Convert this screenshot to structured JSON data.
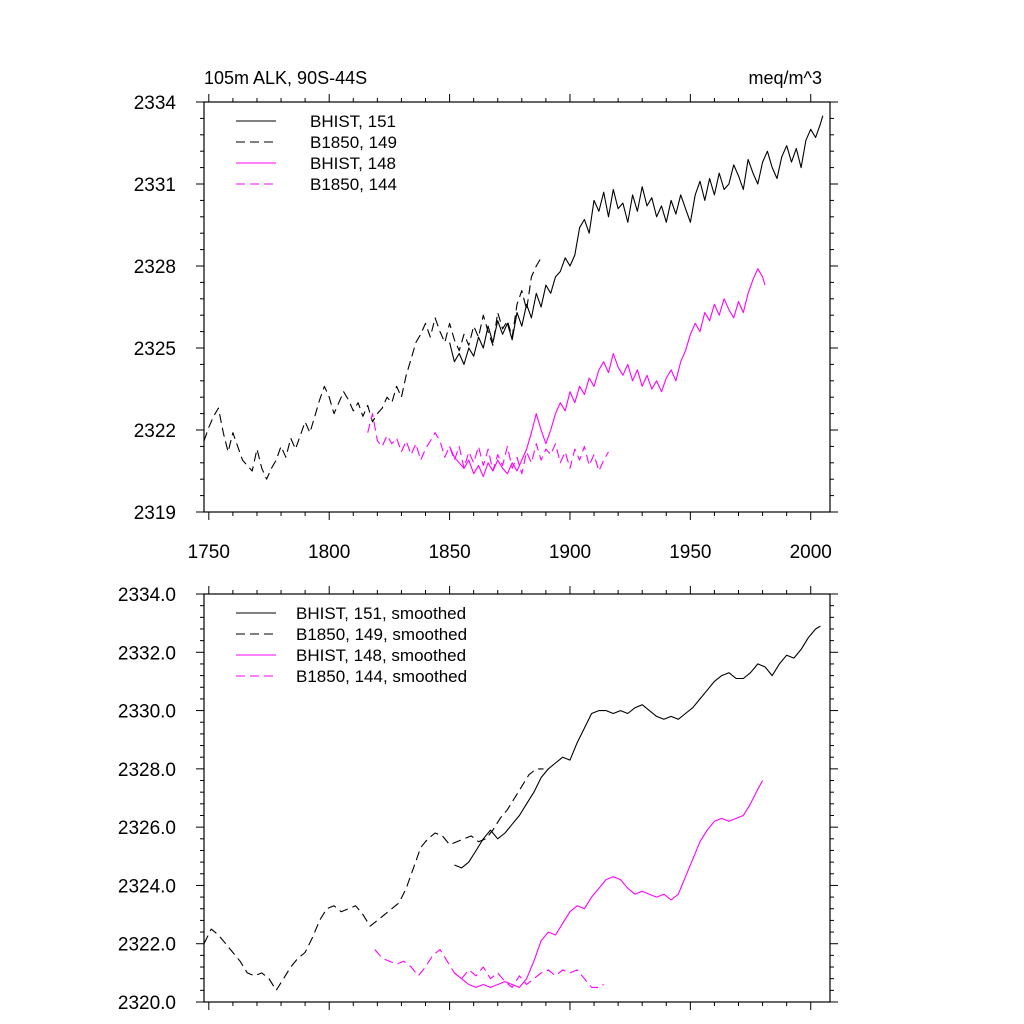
{
  "chart_data": [
    {
      "type": "line",
      "title_left": "105m ALK, 90S-44S",
      "title_right": "meq/m^3",
      "xlim": [
        1748,
        2008
      ],
      "ylim": [
        2319,
        2334
      ],
      "xticks": [
        1750,
        1800,
        1850,
        1900,
        1950,
        2000
      ],
      "xtick_labels": [
        "1750",
        "1800",
        "1850",
        "1900",
        "1950",
        "2000"
      ],
      "yticks": [
        2319,
        2322,
        2325,
        2328,
        2331,
        2334
      ],
      "ytick_labels": [
        "2319",
        "2322",
        "2325",
        "2328",
        "2331",
        "2334"
      ],
      "grid": false,
      "legend_position": "top-left",
      "series": [
        {
          "name": "BHIST, 151",
          "color": "#000000",
          "dash": "solid",
          "x": [
            1850,
            1852,
            1854,
            1856,
            1858,
            1860,
            1862,
            1864,
            1866,
            1868,
            1870,
            1872,
            1874,
            1876,
            1878,
            1880,
            1882,
            1884,
            1886,
            1888,
            1890,
            1892,
            1894,
            1896,
            1898,
            1900,
            1902,
            1904,
            1906,
            1908,
            1910,
            1912,
            1914,
            1916,
            1918,
            1920,
            1922,
            1924,
            1926,
            1928,
            1930,
            1932,
            1934,
            1936,
            1938,
            1940,
            1942,
            1944,
            1946,
            1948,
            1950,
            1952,
            1954,
            1956,
            1958,
            1960,
            1962,
            1964,
            1966,
            1968,
            1970,
            1972,
            1974,
            1976,
            1978,
            1980,
            1982,
            1984,
            1986,
            1988,
            1990,
            1992,
            1994,
            1996,
            1998,
            2000,
            2002,
            2004,
            2005
          ],
          "y": [
            2325.2,
            2324.5,
            2324.8,
            2324.4,
            2325.0,
            2324.7,
            2325.4,
            2325.0,
            2325.8,
            2325.2,
            2326.0,
            2325.5,
            2325.9,
            2325.3,
            2326.3,
            2325.8,
            2326.6,
            2326.1,
            2327.0,
            2326.5,
            2327.3,
            2327.0,
            2327.6,
            2327.8,
            2328.3,
            2328.0,
            2328.4,
            2329.4,
            2329.7,
            2329.2,
            2330.4,
            2330.0,
            2330.7,
            2329.8,
            2330.8,
            2330.1,
            2330.3,
            2329.6,
            2330.6,
            2330.0,
            2330.9,
            2330.2,
            2330.5,
            2329.8,
            2330.2,
            2329.6,
            2330.4,
            2329.9,
            2330.6,
            2330.1,
            2329.6,
            2330.6,
            2331.1,
            2330.4,
            2331.2,
            2330.6,
            2331.4,
            2330.8,
            2331.0,
            2331.7,
            2331.3,
            2330.8,
            2331.9,
            2331.4,
            2331.0,
            2331.8,
            2332.2,
            2331.6,
            2331.2,
            2332.0,
            2332.4,
            2331.8,
            2332.3,
            2331.6,
            2332.6,
            2333.0,
            2332.7,
            2333.2,
            2333.5
          ]
        },
        {
          "name": "B1850, 149",
          "color": "#000000",
          "dash": "dashed",
          "x": [
            1748,
            1750,
            1752,
            1754,
            1756,
            1758,
            1760,
            1762,
            1764,
            1766,
            1768,
            1770,
            1772,
            1774,
            1776,
            1778,
            1780,
            1782,
            1784,
            1786,
            1788,
            1790,
            1792,
            1794,
            1796,
            1798,
            1800,
            1802,
            1804,
            1806,
            1808,
            1810,
            1812,
            1814,
            1816,
            1818,
            1820,
            1822,
            1824,
            1826,
            1828,
            1830,
            1832,
            1834,
            1836,
            1838,
            1840,
            1842,
            1844,
            1846,
            1848,
            1850,
            1852,
            1854,
            1856,
            1858,
            1860,
            1862,
            1864,
            1866,
            1868,
            1870,
            1872,
            1874,
            1876,
            1878,
            1880,
            1882,
            1884,
            1886,
            1888
          ],
          "y": [
            2321.6,
            2322.1,
            2322.5,
            2322.8,
            2321.9,
            2321.2,
            2321.9,
            2321.4,
            2320.9,
            2320.7,
            2320.5,
            2321.3,
            2320.6,
            2320.2,
            2320.6,
            2320.9,
            2321.4,
            2321.0,
            2321.7,
            2321.3,
            2321.8,
            2322.3,
            2321.9,
            2322.5,
            2323.1,
            2323.6,
            2323.2,
            2322.6,
            2323.0,
            2323.4,
            2323.1,
            2322.7,
            2323.0,
            2322.5,
            2322.9,
            2322.3,
            2322.6,
            2322.8,
            2323.2,
            2323.0,
            2323.6,
            2323.2,
            2324.0,
            2324.6,
            2325.2,
            2325.5,
            2325.9,
            2325.4,
            2326.1,
            2325.6,
            2325.2,
            2325.9,
            2325.3,
            2324.9,
            2325.5,
            2325.1,
            2325.8,
            2325.4,
            2326.2,
            2325.6,
            2325.1,
            2326.3,
            2325.7,
            2326.0,
            2325.4,
            2326.6,
            2327.1,
            2326.4,
            2327.6,
            2328.0,
            2328.3
          ]
        },
        {
          "name": "BHIST, 148",
          "color": "#ff00ff",
          "dash": "solid",
          "x": [
            1850,
            1852,
            1854,
            1856,
            1858,
            1860,
            1862,
            1864,
            1866,
            1868,
            1870,
            1872,
            1874,
            1876,
            1878,
            1880,
            1882,
            1884,
            1886,
            1888,
            1890,
            1892,
            1894,
            1896,
            1898,
            1900,
            1902,
            1904,
            1906,
            1908,
            1910,
            1912,
            1914,
            1916,
            1918,
            1920,
            1922,
            1924,
            1926,
            1928,
            1930,
            1932,
            1934,
            1936,
            1938,
            1940,
            1942,
            1944,
            1946,
            1948,
            1950,
            1952,
            1954,
            1956,
            1958,
            1960,
            1962,
            1964,
            1966,
            1968,
            1970,
            1972,
            1974,
            1976,
            1978,
            1980,
            1981
          ],
          "y": [
            2321.4,
            2321.0,
            2320.8,
            2320.6,
            2320.9,
            2320.4,
            2320.7,
            2320.3,
            2320.8,
            2320.5,
            2320.9,
            2320.6,
            2320.4,
            2320.8,
            2320.5,
            2320.9,
            2321.3,
            2321.9,
            2322.6,
            2322.0,
            2321.5,
            2322.0,
            2322.6,
            2323.0,
            2322.7,
            2323.4,
            2323.0,
            2323.6,
            2323.3,
            2323.9,
            2323.6,
            2324.2,
            2324.5,
            2324.1,
            2324.8,
            2324.3,
            2324.0,
            2324.4,
            2323.8,
            2324.2,
            2323.6,
            2324.0,
            2323.5,
            2323.8,
            2323.4,
            2323.9,
            2324.2,
            2323.8,
            2324.5,
            2324.9,
            2325.5,
            2325.9,
            2325.6,
            2326.3,
            2326.0,
            2326.6,
            2326.2,
            2326.8,
            2326.4,
            2326.1,
            2326.7,
            2326.3,
            2327.0,
            2327.5,
            2327.9,
            2327.6,
            2327.3
          ]
        },
        {
          "name": "B1850, 144",
          "color": "#ff00ff",
          "dash": "dashed",
          "x": [
            1816,
            1818,
            1820,
            1822,
            1824,
            1826,
            1828,
            1830,
            1832,
            1834,
            1836,
            1838,
            1840,
            1842,
            1844,
            1846,
            1848,
            1850,
            1852,
            1854,
            1856,
            1858,
            1860,
            1862,
            1864,
            1866,
            1868,
            1870,
            1872,
            1874,
            1876,
            1878,
            1880,
            1882,
            1884,
            1886,
            1888,
            1890,
            1892,
            1894,
            1896,
            1898,
            1900,
            1902,
            1904,
            1906,
            1908,
            1910,
            1912,
            1914,
            1916
          ],
          "y": [
            2321.9,
            2322.6,
            2321.6,
            2321.4,
            2321.8,
            2321.5,
            2321.7,
            2321.2,
            2321.6,
            2321.1,
            2321.5,
            2320.9,
            2321.3,
            2321.6,
            2321.9,
            2321.6,
            2321.0,
            2321.4,
            2320.9,
            2321.4,
            2320.6,
            2321.2,
            2320.8,
            2321.4,
            2320.7,
            2321.3,
            2320.5,
            2321.1,
            2320.7,
            2321.4,
            2320.6,
            2321.0,
            2320.4,
            2321.2,
            2320.8,
            2321.5,
            2320.9,
            2321.3,
            2321.1,
            2321.5,
            2320.8,
            2321.2,
            2320.6,
            2321.3,
            2320.9,
            2321.4,
            2320.7,
            2321.1,
            2320.5,
            2320.9,
            2321.2
          ]
        }
      ]
    },
    {
      "type": "line",
      "xlim": [
        1748,
        2008
      ],
      "ylim": [
        2320.0,
        2334.0
      ],
      "xticks": [
        1750,
        1800,
        1850,
        1900,
        1950,
        2000
      ],
      "yticks": [
        2320,
        2322,
        2324,
        2326,
        2328,
        2330,
        2332,
        2334
      ],
      "ytick_labels": [
        "2320.0",
        "2322.0",
        "2324.0",
        "2326.0",
        "2328.0",
        "2330.0",
        "2332.0",
        "2334.0"
      ],
      "grid": false,
      "legend_position": "top-left",
      "series": [
        {
          "name": "BHIST, 151, smoothed",
          "color": "#000000",
          "dash": "solid",
          "x": [
            1852,
            1855,
            1858,
            1861,
            1864,
            1867,
            1870,
            1873,
            1876,
            1879,
            1882,
            1885,
            1888,
            1891,
            1894,
            1897,
            1900,
            1903,
            1906,
            1909,
            1912,
            1915,
            1918,
            1921,
            1924,
            1927,
            1930,
            1933,
            1936,
            1939,
            1942,
            1945,
            1948,
            1951,
            1954,
            1957,
            1960,
            1963,
            1966,
            1969,
            1972,
            1975,
            1978,
            1981,
            1984,
            1987,
            1990,
            1993,
            1996,
            1999,
            2002,
            2004
          ],
          "y": [
            2324.7,
            2324.6,
            2324.8,
            2325.2,
            2325.6,
            2325.9,
            2325.6,
            2325.8,
            2326.1,
            2326.4,
            2326.8,
            2327.2,
            2327.7,
            2328.0,
            2328.2,
            2328.4,
            2328.3,
            2328.9,
            2329.4,
            2329.9,
            2330.0,
            2330.0,
            2329.9,
            2330.0,
            2329.9,
            2330.1,
            2330.2,
            2330.0,
            2329.8,
            2329.7,
            2329.8,
            2329.7,
            2329.9,
            2330.1,
            2330.4,
            2330.7,
            2331.0,
            2331.2,
            2331.3,
            2331.1,
            2331.1,
            2331.3,
            2331.6,
            2331.5,
            2331.2,
            2331.6,
            2331.9,
            2331.8,
            2332.1,
            2332.5,
            2332.8,
            2332.9
          ]
        },
        {
          "name": "B1850, 149, smoothed",
          "color": "#000000",
          "dash": "dashed",
          "x": [
            1748,
            1751,
            1754,
            1757,
            1760,
            1763,
            1766,
            1769,
            1772,
            1775,
            1778,
            1781,
            1784,
            1787,
            1790,
            1793,
            1796,
            1799,
            1802,
            1805,
            1808,
            1811,
            1814,
            1817,
            1820,
            1823,
            1826,
            1829,
            1832,
            1835,
            1838,
            1841,
            1844,
            1847,
            1850,
            1853,
            1856,
            1859,
            1862,
            1865,
            1868,
            1871,
            1874,
            1877,
            1880,
            1883,
            1886,
            1889
          ],
          "y": [
            2322.0,
            2322.5,
            2322.3,
            2322.0,
            2321.7,
            2321.4,
            2321.0,
            2320.9,
            2321.0,
            2320.8,
            2320.4,
            2320.8,
            2321.2,
            2321.5,
            2321.7,
            2322.2,
            2322.8,
            2323.2,
            2323.3,
            2323.1,
            2323.2,
            2323.3,
            2323.0,
            2322.6,
            2322.8,
            2323.0,
            2323.2,
            2323.4,
            2323.9,
            2324.6,
            2325.3,
            2325.6,
            2325.8,
            2325.7,
            2325.4,
            2325.5,
            2325.6,
            2325.7,
            2325.5,
            2325.6,
            2325.9,
            2326.3,
            2326.6,
            2327.0,
            2327.4,
            2327.8,
            2328.0,
            2328.0
          ]
        },
        {
          "name": "BHIST, 148, smoothed",
          "color": "#ff00ff",
          "dash": "solid",
          "x": [
            1852,
            1855,
            1858,
            1861,
            1864,
            1867,
            1870,
            1873,
            1876,
            1879,
            1882,
            1885,
            1888,
            1891,
            1894,
            1897,
            1900,
            1903,
            1906,
            1909,
            1912,
            1915,
            1918,
            1921,
            1924,
            1927,
            1930,
            1933,
            1936,
            1939,
            1942,
            1945,
            1948,
            1951,
            1954,
            1957,
            1960,
            1963,
            1966,
            1969,
            1972,
            1975,
            1978,
            1980
          ],
          "y": [
            2321.0,
            2320.8,
            2320.6,
            2320.5,
            2320.6,
            2320.5,
            2320.6,
            2320.7,
            2320.6,
            2320.5,
            2320.8,
            2321.4,
            2322.1,
            2322.4,
            2322.3,
            2322.7,
            2323.1,
            2323.3,
            2323.2,
            2323.6,
            2323.9,
            2324.2,
            2324.3,
            2324.2,
            2323.9,
            2323.7,
            2323.8,
            2323.7,
            2323.6,
            2323.7,
            2323.5,
            2323.7,
            2324.3,
            2324.9,
            2325.5,
            2325.9,
            2326.2,
            2326.3,
            2326.2,
            2326.3,
            2326.4,
            2326.8,
            2327.3,
            2327.6
          ]
        },
        {
          "name": "B1850, 144, smoothed",
          "color": "#ff00ff",
          "dash": "dashed",
          "x": [
            1819,
            1822,
            1825,
            1828,
            1831,
            1834,
            1837,
            1840,
            1843,
            1846,
            1849,
            1852,
            1855,
            1858,
            1861,
            1864,
            1867,
            1870,
            1873,
            1876,
            1879,
            1882,
            1885,
            1888,
            1891,
            1894,
            1897,
            1900,
            1903,
            1906,
            1909,
            1912,
            1914
          ],
          "y": [
            2321.8,
            2321.5,
            2321.4,
            2321.3,
            2321.4,
            2321.2,
            2320.9,
            2321.2,
            2321.6,
            2321.8,
            2321.4,
            2321.0,
            2320.8,
            2321.1,
            2320.9,
            2321.2,
            2320.8,
            2321.0,
            2320.7,
            2320.5,
            2320.9,
            2320.6,
            2320.8,
            2321.0,
            2321.1,
            2320.9,
            2321.1,
            2321.0,
            2321.1,
            2320.8,
            2320.5,
            2320.5,
            2320.6
          ]
        }
      ]
    }
  ]
}
